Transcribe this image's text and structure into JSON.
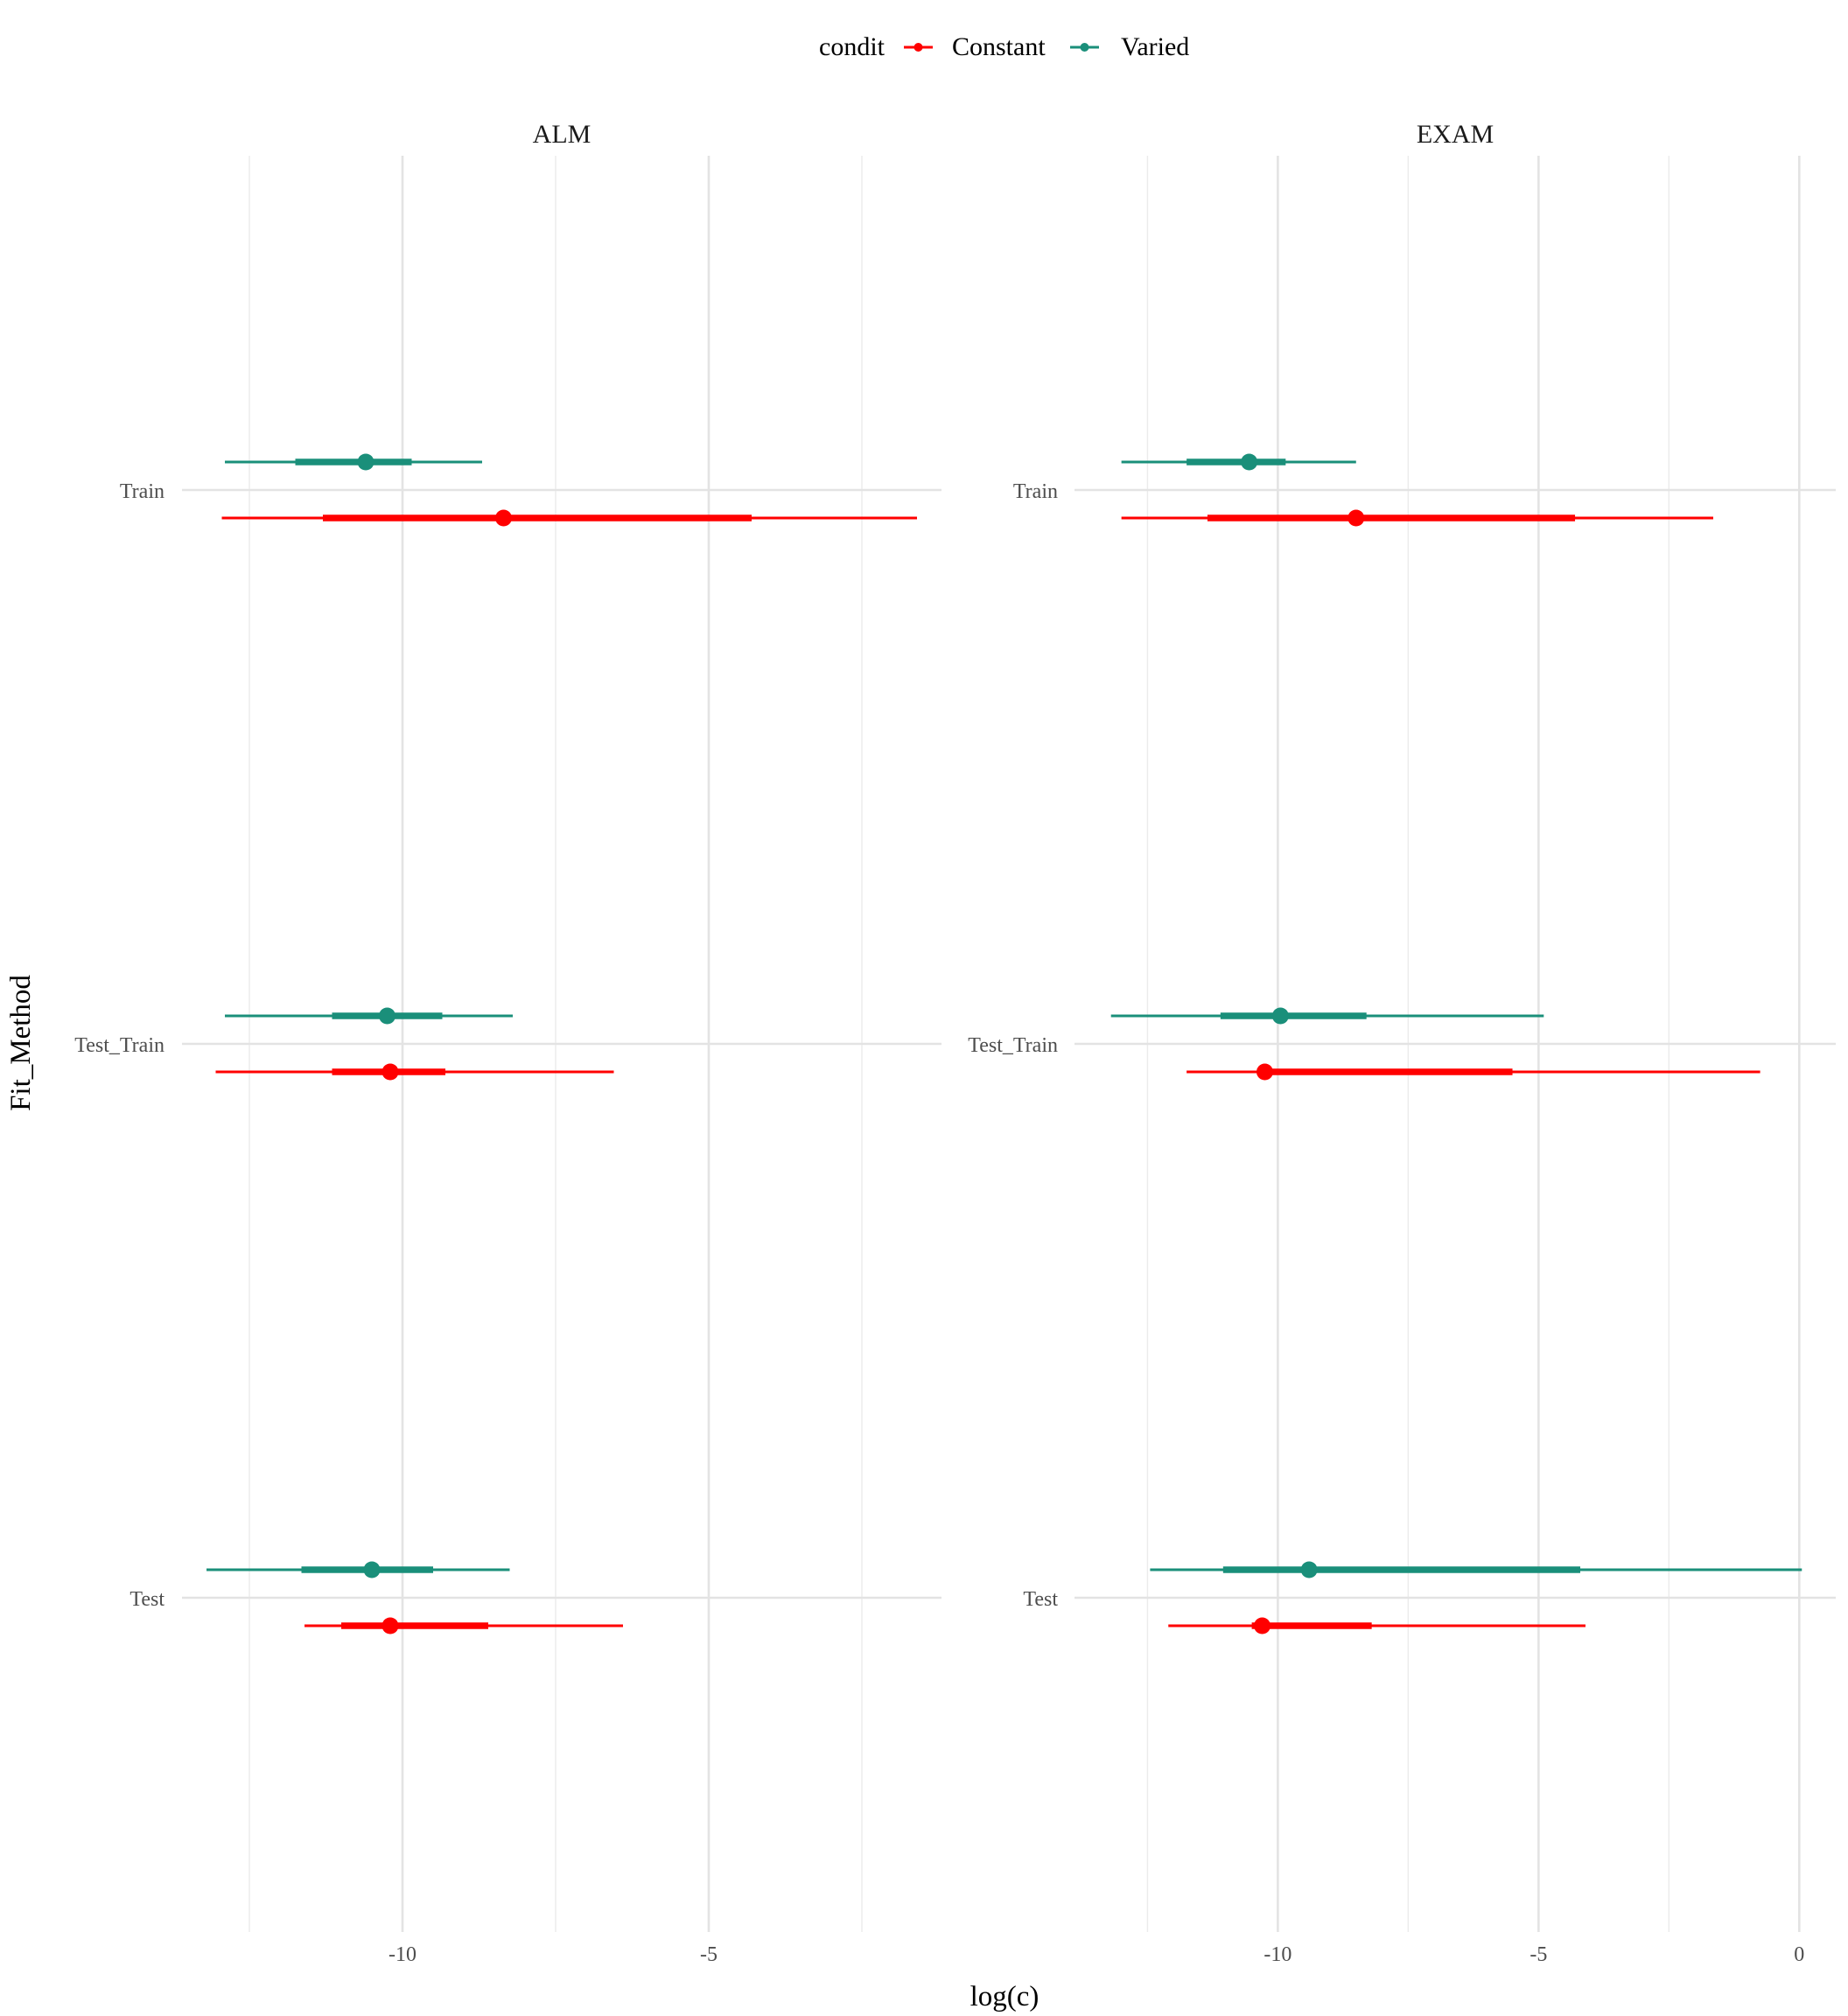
{
  "chart_data": {
    "type": "pointrange",
    "legend": {
      "title": "condit",
      "placement": "top",
      "entries": [
        {
          "label": "Constant",
          "color": "#ff0000"
        },
        {
          "label": "Varied",
          "color": "#1a8f7a"
        }
      ]
    },
    "ylabel": "Fit_Method",
    "xlabel": "log(c)",
    "categories": [
      "Train",
      "Test_Train",
      "Test"
    ],
    "grid": true,
    "facets": [
      {
        "title": "ALM",
        "xlim": [
          -13.6,
          -1.2
        ],
        "xticks": [
          -10,
          -5
        ],
        "xtick_labels": [
          "-10",
          "-5"
        ],
        "series": [
          {
            "name": "Varied",
            "color": "#1a8f7a",
            "points": [
              {
                "category": "Train",
                "median": -10.6,
                "inner": [
                  -11.75,
                  -9.85
                ],
                "outer": [
                  -12.9,
                  -8.7
                ]
              },
              {
                "category": "Test_Train",
                "median": -10.25,
                "inner": [
                  -11.15,
                  -9.35
                ],
                "outer": [
                  -12.9,
                  -8.2
                ]
              },
              {
                "category": "Test",
                "median": -10.5,
                "inner": [
                  -11.65,
                  -9.5
                ],
                "outer": [
                  -13.2,
                  -8.25
                ]
              }
            ]
          },
          {
            "name": "Constant",
            "color": "#ff0000",
            "points": [
              {
                "category": "Train",
                "median": -8.35,
                "inner": [
                  -11.3,
                  -4.3
                ],
                "outer": [
                  -12.95,
                  -1.6
                ]
              },
              {
                "category": "Test_Train",
                "median": -10.2,
                "inner": [
                  -11.15,
                  -9.3
                ],
                "outer": [
                  -13.05,
                  -6.55
                ]
              },
              {
                "category": "Test",
                "median": -10.2,
                "inner": [
                  -11.0,
                  -8.6
                ],
                "outer": [
                  -11.6,
                  -6.4
                ]
              }
            ]
          }
        ]
      },
      {
        "title": "EXAM",
        "xlim": [
          -13.9,
          0.7
        ],
        "xticks": [
          -10,
          -5,
          0
        ],
        "xtick_labels": [
          "-10",
          "-5",
          "0"
        ],
        "series": [
          {
            "name": "Varied",
            "color": "#1a8f7a",
            "points": [
              {
                "category": "Train",
                "median": -10.55,
                "inner": [
                  -11.75,
                  -9.85
                ],
                "outer": [
                  -13.0,
                  -8.5
                ]
              },
              {
                "category": "Test_Train",
                "median": -9.95,
                "inner": [
                  -11.1,
                  -8.3
                ],
                "outer": [
                  -13.2,
                  -4.9
                ]
              },
              {
                "category": "Test",
                "median": -9.4,
                "inner": [
                  -11.05,
                  -4.2
                ],
                "outer": [
                  -12.45,
                  0.05
                ]
              }
            ]
          },
          {
            "name": "Constant",
            "color": "#ff0000",
            "points": [
              {
                "category": "Train",
                "median": -8.5,
                "inner": [
                  -11.35,
                  -4.3
                ],
                "outer": [
                  -13.0,
                  -1.65
                ]
              },
              {
                "category": "Test_Train",
                "median": -10.25,
                "inner": [
                  -10.4,
                  -5.5
                ],
                "outer": [
                  -11.75,
                  -0.75
                ]
              },
              {
                "category": "Test",
                "median": -10.3,
                "inner": [
                  -10.5,
                  -8.2
                ],
                "outer": [
                  -12.1,
                  -4.1
                ]
              }
            ]
          }
        ]
      }
    ]
  }
}
